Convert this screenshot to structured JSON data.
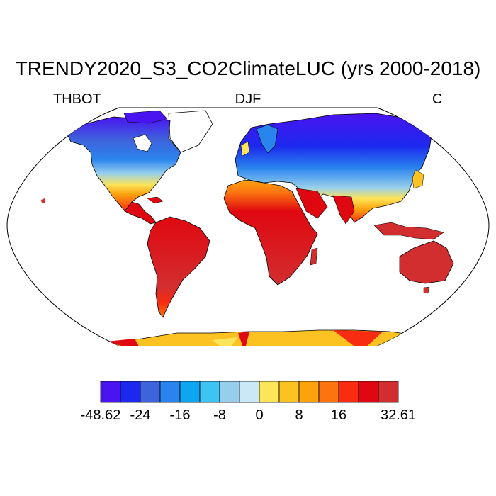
{
  "title": "TRENDY2020_S3_CO2ClimateLUC (yrs 2000-2018)",
  "variable": "THBOT",
  "season": "DJF",
  "units": "C",
  "projection": "Robinson",
  "colorbar": {
    "colors": [
      "#4a14f0",
      "#1c28ee",
      "#3e64dc",
      "#2a84ee",
      "#0ea6f0",
      "#3ec4f2",
      "#96cfec",
      "#cbe8f6",
      "#fde55a",
      "#fcc222",
      "#fca20c",
      "#fc7410",
      "#f82c10",
      "#e00810",
      "#d22e30"
    ],
    "labels": [
      "-48.62",
      "-24",
      "-16",
      "-8",
      "0",
      "8",
      "16",
      "32.61"
    ],
    "label_boundaries": [
      0,
      2,
      4,
      6,
      8,
      10,
      12,
      15
    ]
  }
}
